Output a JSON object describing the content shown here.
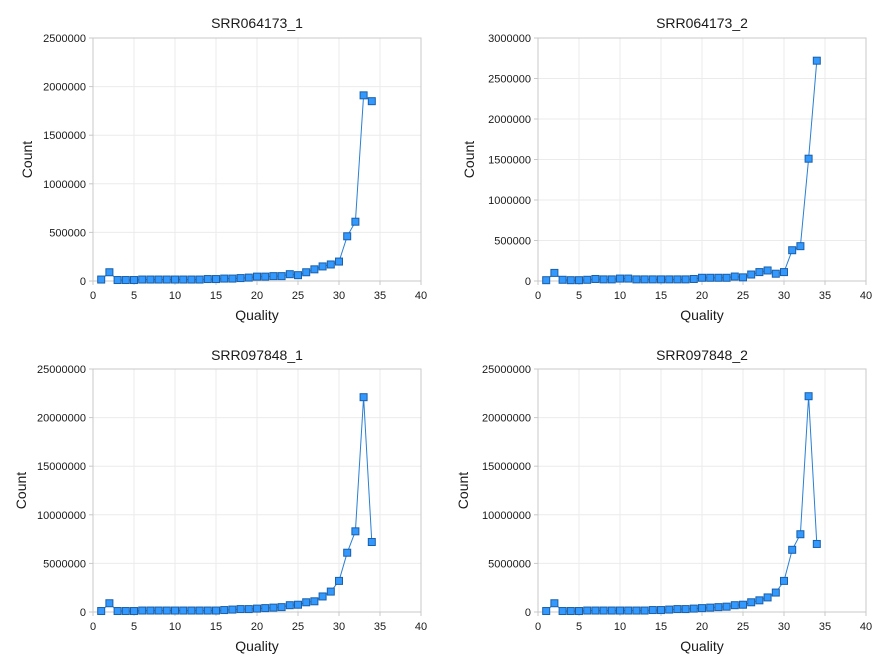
{
  "colors": {
    "line": "#2a7fd4",
    "marker_fill": "#3399ff",
    "marker_stroke": "#1a5fa8",
    "grid": "#ebebeb",
    "axis": "#c8c8c8",
    "text": "#1a1a1a"
  },
  "chart_data": [
    {
      "type": "line",
      "title": "SRR064173_1",
      "xlabel": "Quality",
      "ylabel": "Count",
      "xlim": [
        0,
        40
      ],
      "ylim": [
        0,
        2500000
      ],
      "xticks": [
        0,
        5,
        10,
        15,
        20,
        25,
        30,
        35,
        40
      ],
      "yticks": [
        0,
        500000,
        1000000,
        1500000,
        2000000,
        2500000
      ],
      "grid": true,
      "legend": "none",
      "series": [
        {
          "x": [
            1,
            2,
            3,
            4,
            5,
            6,
            7,
            8,
            9,
            10,
            11,
            12,
            13,
            14,
            15,
            16,
            17,
            18,
            19,
            20,
            21,
            22,
            23,
            24,
            25,
            26,
            27,
            28,
            29,
            30,
            31,
            32,
            33,
            34
          ],
          "values": [
            15000,
            90000,
            10000,
            10000,
            10000,
            15000,
            15000,
            15000,
            15000,
            15000,
            15000,
            15000,
            15000,
            20000,
            20000,
            25000,
            25000,
            30000,
            35000,
            45000,
            45000,
            50000,
            50000,
            70000,
            60000,
            90000,
            120000,
            150000,
            170000,
            200000,
            460000,
            610000,
            1910000,
            1850000
          ]
        }
      ]
    },
    {
      "type": "line",
      "title": "SRR064173_2",
      "xlabel": "Quality",
      "ylabel": "Count",
      "xlim": [
        0,
        40
      ],
      "ylim": [
        0,
        3000000
      ],
      "xticks": [
        0,
        5,
        10,
        15,
        20,
        25,
        30,
        35,
        40
      ],
      "yticks": [
        0,
        500000,
        1000000,
        1500000,
        2000000,
        2500000,
        3000000
      ],
      "grid": true,
      "legend": "none",
      "series": [
        {
          "x": [
            1,
            2,
            3,
            4,
            5,
            6,
            7,
            8,
            9,
            10,
            11,
            12,
            13,
            14,
            15,
            16,
            17,
            18,
            19,
            20,
            21,
            22,
            23,
            24,
            25,
            26,
            27,
            28,
            29,
            30,
            31,
            32,
            33,
            34
          ],
          "values": [
            10000,
            100000,
            15000,
            10000,
            10000,
            15000,
            25000,
            20000,
            20000,
            30000,
            30000,
            20000,
            20000,
            20000,
            20000,
            20000,
            20000,
            20000,
            25000,
            40000,
            40000,
            40000,
            40000,
            55000,
            45000,
            80000,
            110000,
            130000,
            90000,
            110000,
            380000,
            430000,
            1510000,
            2720000
          ]
        }
      ]
    },
    {
      "type": "line",
      "title": "SRR097848_1",
      "xlabel": "Quality",
      "ylabel": "Count",
      "xlim": [
        0,
        40
      ],
      "ylim": [
        0,
        25000000
      ],
      "xticks": [
        0,
        5,
        10,
        15,
        20,
        25,
        30,
        35,
        40
      ],
      "yticks": [
        0,
        5000000,
        10000000,
        15000000,
        20000000,
        25000000
      ],
      "grid": true,
      "legend": "none",
      "series": [
        {
          "x": [
            1,
            2,
            3,
            4,
            5,
            6,
            7,
            8,
            9,
            10,
            11,
            12,
            13,
            14,
            15,
            16,
            17,
            18,
            19,
            20,
            21,
            22,
            23,
            24,
            25,
            26,
            27,
            28,
            29,
            30,
            31,
            32,
            33,
            34
          ],
          "values": [
            100000,
            900000,
            100000,
            100000,
            100000,
            150000,
            150000,
            150000,
            150000,
            150000,
            150000,
            150000,
            150000,
            150000,
            150000,
            200000,
            250000,
            300000,
            300000,
            350000,
            400000,
            450000,
            500000,
            700000,
            750000,
            1000000,
            1100000,
            1600000,
            2100000,
            3200000,
            6100000,
            8300000,
            22100000,
            7200000
          ]
        }
      ]
    },
    {
      "type": "line",
      "title": "SRR097848_2",
      "xlabel": "Quality",
      "ylabel": "Count",
      "xlim": [
        0,
        40
      ],
      "ylim": [
        0,
        25000000
      ],
      "xticks": [
        0,
        5,
        10,
        15,
        20,
        25,
        30,
        35,
        40
      ],
      "yticks": [
        0,
        5000000,
        10000000,
        15000000,
        20000000,
        25000000
      ],
      "grid": true,
      "legend": "none",
      "series": [
        {
          "x": [
            1,
            2,
            3,
            4,
            5,
            6,
            7,
            8,
            9,
            10,
            11,
            12,
            13,
            14,
            15,
            16,
            17,
            18,
            19,
            20,
            21,
            22,
            23,
            24,
            25,
            26,
            27,
            28,
            29,
            30,
            31,
            32,
            33,
            34
          ],
          "values": [
            100000,
            900000,
            100000,
            100000,
            100000,
            150000,
            150000,
            150000,
            150000,
            150000,
            150000,
            150000,
            150000,
            200000,
            200000,
            250000,
            300000,
            300000,
            350000,
            400000,
            450000,
            500000,
            550000,
            700000,
            750000,
            1000000,
            1200000,
            1500000,
            2000000,
            3200000,
            6400000,
            8000000,
            22200000,
            7000000
          ]
        }
      ]
    }
  ]
}
